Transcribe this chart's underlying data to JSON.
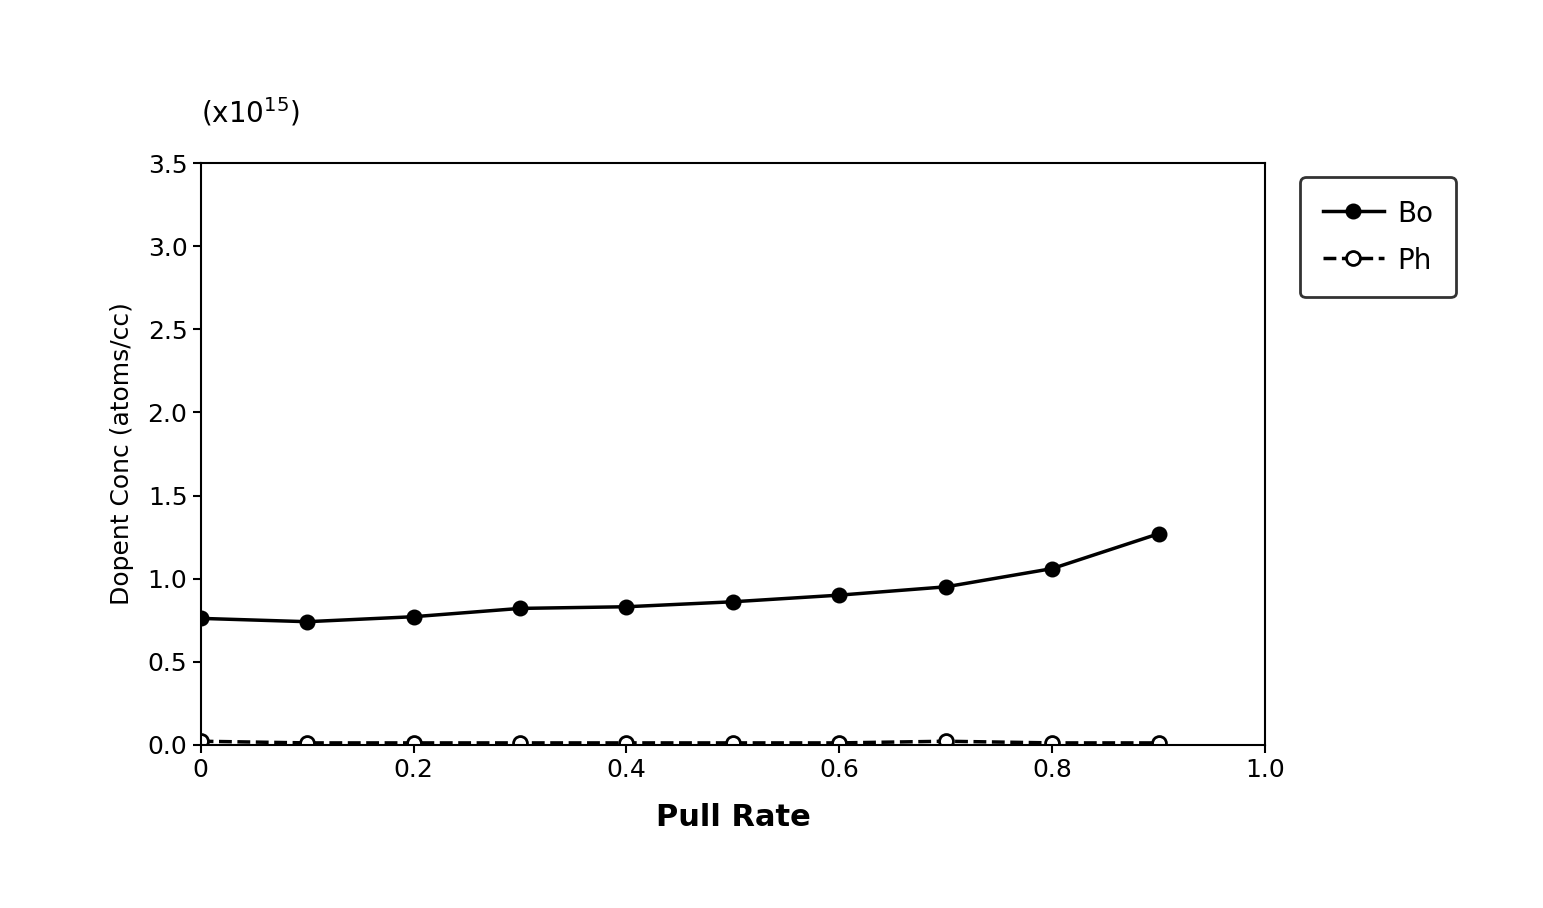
{
  "bo_x": [
    0.0,
    0.1,
    0.2,
    0.3,
    0.4,
    0.5,
    0.6,
    0.7,
    0.8,
    0.9
  ],
  "bo_y": [
    0.76,
    0.74,
    0.77,
    0.82,
    0.83,
    0.86,
    0.9,
    0.95,
    1.06,
    1.27
  ],
  "ph_x": [
    0.0,
    0.1,
    0.2,
    0.3,
    0.4,
    0.5,
    0.6,
    0.7,
    0.8,
    0.9
  ],
  "ph_y": [
    0.02,
    0.01,
    0.01,
    0.01,
    0.01,
    0.01,
    0.01,
    0.02,
    0.01,
    0.01
  ],
  "xlim": [
    0.0,
    1.0
  ],
  "ylim": [
    0.0,
    3.5
  ],
  "yticks": [
    0.0,
    0.5,
    1.0,
    1.5,
    2.0,
    2.5,
    3.0,
    3.5
  ],
  "xticks": [
    0.0,
    0.2,
    0.4,
    0.6,
    0.8,
    1.0
  ],
  "xlabel": "Pull Rate",
  "ylabel": "Dopent Conc (atoms/cc)",
  "multiplier_label": "(x10$^{15}$)",
  "bo_label": "Bo",
  "ph_label": "Ph",
  "bo_color": "#000000",
  "ph_color": "#000000",
  "bg_color": "#ffffff",
  "legend_fontsize": 20,
  "axis_fontsize": 20,
  "tick_fontsize": 18,
  "xlabel_fontsize": 22,
  "ylabel_fontsize": 18
}
